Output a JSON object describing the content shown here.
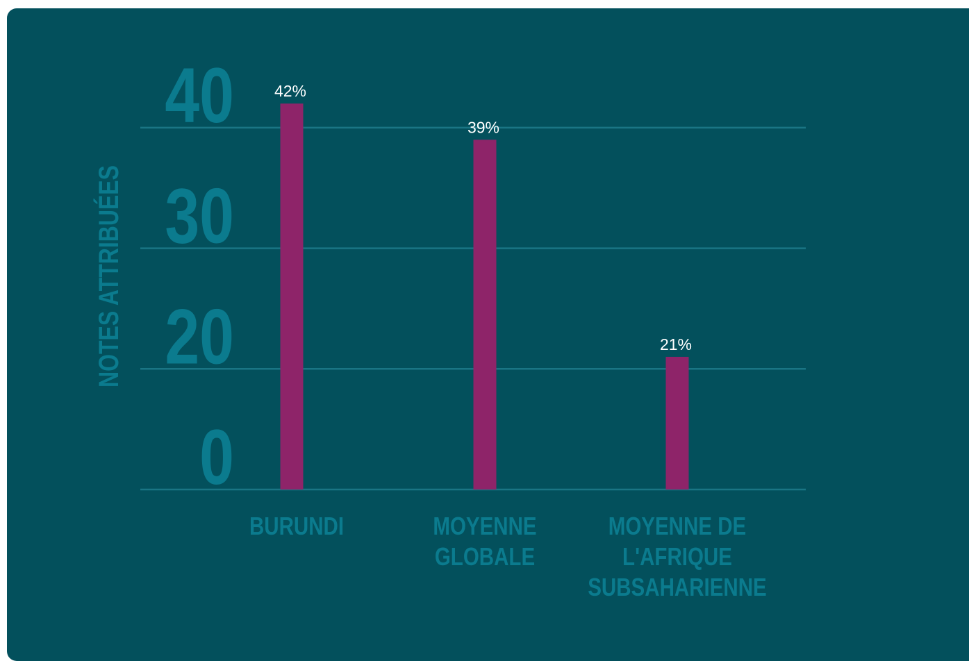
{
  "chart_data": {
    "type": "bar",
    "y_label": "NOTES ATTRIBUÉES",
    "categories": [
      "BURUNDI",
      "MOYENNE\nGLOBALE",
      "MOYENNE DE\nL'AFRIQUE\nSUBSAHARIENNE"
    ],
    "values": [
      42,
      39,
      21
    ],
    "value_labels": [
      "42%",
      "39%",
      "21%"
    ],
    "color": "#8e2469",
    "ylim": [
      0,
      40
    ],
    "yticks": [
      0,
      20,
      30,
      40
    ],
    "grid": true
  }
}
